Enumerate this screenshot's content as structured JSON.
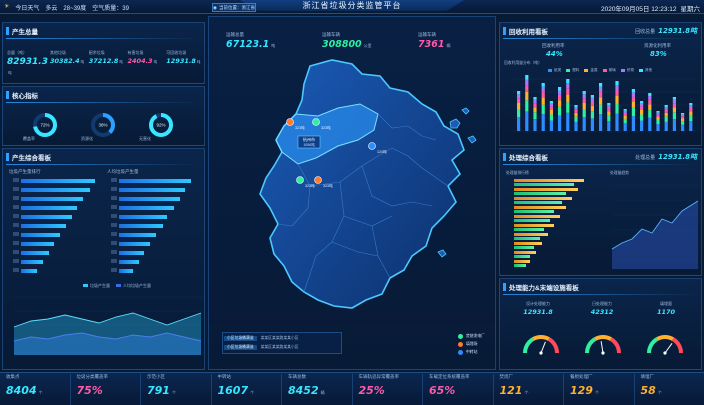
{
  "header": {
    "weather": "今日天气",
    "weather_desc": "多云",
    "temp": "28~39度",
    "air_quality": "空气质量：39",
    "title": "浙江省垃圾分类监管平台",
    "datetime": "2020年09月05日 12:23:12",
    "weekday": "星期六",
    "location_button": "当前位置：浙江省"
  },
  "left": {
    "output_total": {
      "title": "产生总量",
      "items": [
        {
          "label": "总量（吨）",
          "value": "82931.3"
        },
        {
          "label": "其他垃圾",
          "value": "30382.4"
        },
        {
          "label": "厨余垃圾",
          "value": "37212.8"
        },
        {
          "label": "有害垃圾",
          "value": "2404.3"
        },
        {
          "label": "可回收垃圾",
          "value": "12931.8"
        }
      ],
      "unit": "吨"
    },
    "core": {
      "title": "核心指标",
      "items": [
        {
          "label": "覆盖率",
          "value": "72%"
        },
        {
          "label": "资源化",
          "value": "38%"
        },
        {
          "label": "无害化",
          "value": "92%"
        }
      ]
    },
    "output_board": {
      "title": "产生综合看板",
      "chart1_title": "垃圾产生量排行",
      "chart2_title": "人均垃圾产生量",
      "chart1_values": [
        95,
        88,
        80,
        72,
        65,
        58,
        50,
        42,
        36,
        28,
        20
      ],
      "chart2_values": [
        92,
        85,
        78,
        70,
        62,
        56,
        48,
        40,
        32,
        26,
        18
      ],
      "area_legend_1": "垃圾产生量",
      "area_legend_2": "人均垃圾产生量"
    }
  },
  "center": {
    "stats": [
      {
        "label": "运输总量",
        "value": "67123.1",
        "unit": "吨"
      },
      {
        "label": "运输车辆",
        "value": "308800",
        "unit": "公里"
      },
      {
        "label": "运输车辆",
        "value": "7361",
        "unit": "辆"
      }
    ],
    "map_labels": [
      {
        "name": "杭州市",
        "value": "1056吨"
      },
      {
        "name": "",
        "value": "323吨"
      },
      {
        "name": "",
        "value": "323吨"
      },
      {
        "name": "",
        "value": "124吨"
      },
      {
        "name": "",
        "value": "323吨"
      },
      {
        "name": "",
        "value": "323吨"
      }
    ],
    "legend": [
      {
        "label": "焚烧发电厂",
        "color": "#2ef0a0"
      },
      {
        "label": "填埋场",
        "color": "#ff7a2e"
      },
      {
        "label": "中转站",
        "color": "#2e8cff"
      }
    ],
    "info_rows": [
      {
        "tag": "小区垃圾桶满溢",
        "text": "某某区某某路某某小区"
      },
      {
        "tag": "小区垃圾桶满溢",
        "text": "某某区某某路某某小区"
      }
    ]
  },
  "right": {
    "recycle": {
      "title": "回收利用看板",
      "total_label": "回收总量",
      "total_value": "12931.8吨",
      "kpi1_label": "回收利用率",
      "kpi1_value": "44%",
      "kpi2_label": "资源化利用率",
      "kpi2_value": "83%",
      "chart_title": "回收利用量分布（吨）",
      "legend": [
        "纸类",
        "塑料",
        "金属",
        "玻璃",
        "织物",
        "其他"
      ]
    },
    "process": {
      "title": "处理综合看板",
      "total_label": "处理总量",
      "total_value": "12931.8吨",
      "chart1_title": "处理量排行榜",
      "chart2_title": "处理量趋势"
    },
    "capacity": {
      "title": "处理能力&末端设施看板",
      "items": [
        {
          "label": "设计处理能力",
          "value": "12931.8"
        },
        {
          "label": "日处理能力",
          "value": "42312"
        },
        {
          "label": "填埋量",
          "value": "1170"
        }
      ],
      "gauges": [
        {
          "label": "焚烧厂",
          "percent": 0.62
        },
        {
          "label": "填埋场",
          "percent": 0.45
        },
        {
          "label": "餐厨厂",
          "percent": 0.7
        }
      ]
    }
  },
  "bottom": [
    {
      "label": "收集点",
      "value": "8404",
      "unit": "个",
      "color": "#38e6ff"
    },
    {
      "label": "垃圾分类覆盖率",
      "value": "75%",
      "unit": "",
      "color": "#ff5aa8"
    },
    {
      "label": "示范小区",
      "value": "791",
      "unit": "个",
      "color": "#38e6ff"
    },
    {
      "label": "中转站",
      "value": "1607",
      "unit": "个",
      "color": "#38e6ff"
    },
    {
      "label": "车辆总数",
      "value": "8452",
      "unit": "辆",
      "color": "#38e6ff"
    },
    {
      "label": "车辆轨迹异常覆盖率",
      "value": "25%",
      "unit": "",
      "color": "#ff5aa8"
    },
    {
      "label": "车载定位系统覆盖率",
      "value": "65%",
      "unit": "",
      "color": "#ff5aa8"
    },
    {
      "label": "焚烧厂",
      "value": "121",
      "unit": "个",
      "color": "#ffb02e"
    },
    {
      "label": "餐厨处理厂",
      "value": "129",
      "unit": "个",
      "color": "#ffb02e"
    },
    {
      "label": "填埋厂",
      "value": "58",
      "unit": "个",
      "color": "#ffb02e"
    }
  ],
  "colors": {
    "accent": "#2ea0ff",
    "cyan": "#38e6ff",
    "pink": "#ff5aa8",
    "orange": "#ffb02e",
    "green": "#2ef0a0"
  }
}
